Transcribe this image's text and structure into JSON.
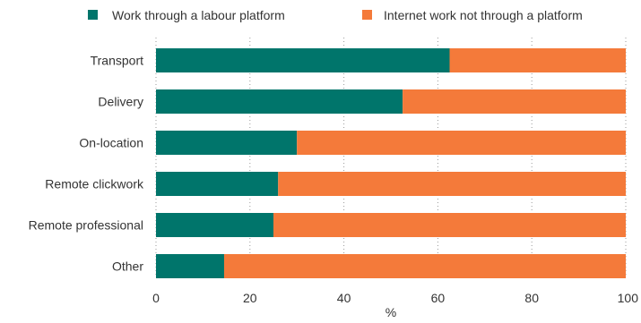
{
  "chart_data": {
    "type": "bar",
    "orientation": "horizontal",
    "stacked": true,
    "categories": [
      "Transport",
      "Delivery",
      "On-location",
      "Remote clickwork",
      "Remote professional",
      "Other"
    ],
    "series": [
      {
        "name": "Work through a labour platform",
        "values": [
          62.5,
          52.5,
          30,
          26,
          25,
          14.5
        ]
      },
      {
        "name": "Internet work not through a platform",
        "values": [
          37.5,
          47.5,
          70,
          74,
          75,
          85.5
        ]
      }
    ],
    "colors": [
      "#00756b",
      "#f47a3a"
    ],
    "xlabel": "%",
    "xlim": [
      0,
      100
    ],
    "xticks": [
      "0",
      "20",
      "40",
      "60",
      "80",
      "100"
    ],
    "grid": "vertical-dotted",
    "legend_position": "top"
  }
}
